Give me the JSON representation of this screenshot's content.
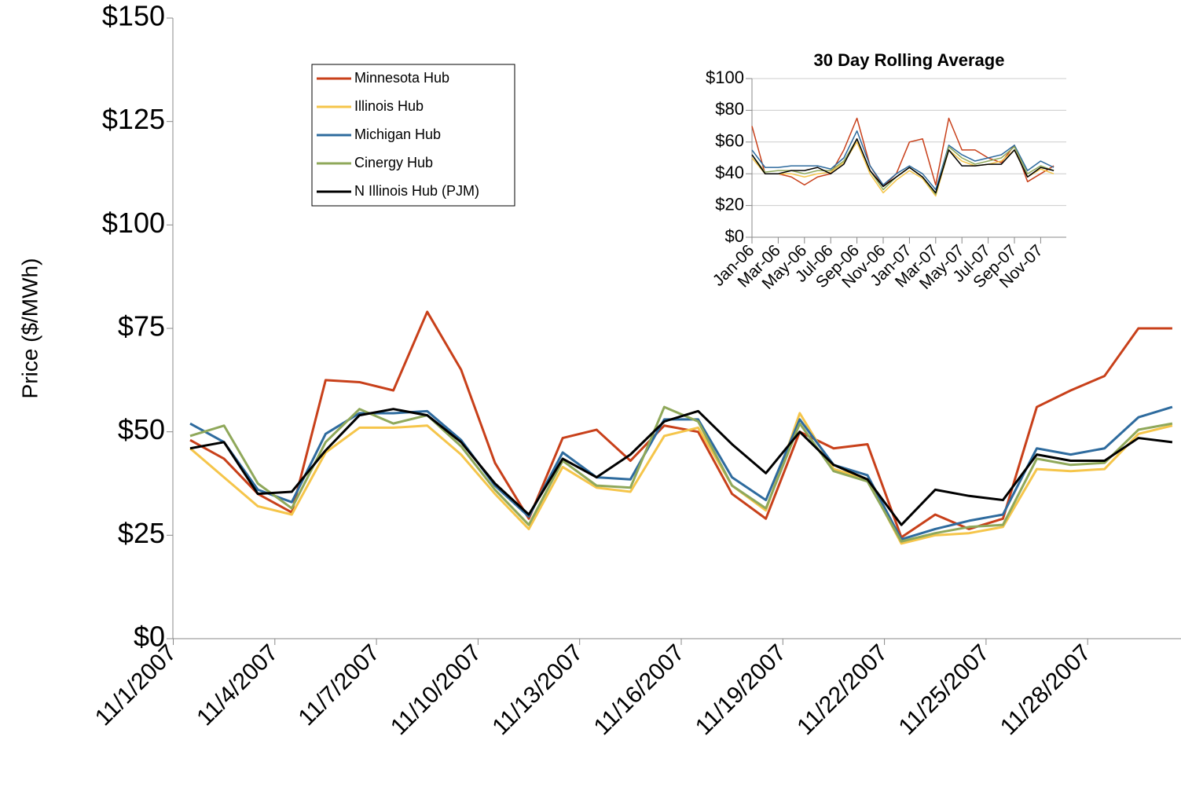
{
  "chart_data": [
    {
      "type": "line",
      "y_label": "Price ($/MWh)",
      "categories": [
        "11/1/2007",
        null,
        null,
        "11/4/2007",
        null,
        null,
        "11/7/2007",
        null,
        null,
        "11/10/2007",
        null,
        null,
        "11/13/2007",
        null,
        null,
        "11/16/2007",
        null,
        null,
        "11/19/2007",
        null,
        null,
        "11/22/2007",
        null,
        null,
        "11/25/2007",
        null,
        null,
        "11/28/2007",
        null,
        null
      ],
      "ylim": [
        0,
        150
      ],
      "yticks": [
        {
          "value": 0,
          "label": "$0"
        },
        {
          "value": 25,
          "label": "$25"
        },
        {
          "value": 50,
          "label": "$50"
        },
        {
          "value": 75,
          "label": "$75"
        },
        {
          "value": 100,
          "label": "$100"
        },
        {
          "value": 125,
          "label": "$125"
        },
        {
          "value": 150,
          "label": "$150"
        }
      ],
      "legend": "top-left",
      "series": [
        {
          "name": "Minnesota Hub",
          "color": "#c8401a",
          "values": [
            48,
            43.5,
            35,
            30.5,
            62.5,
            62,
            60,
            79,
            65,
            42.5,
            29,
            48.5,
            50.5,
            43,
            51.5,
            50,
            35,
            29,
            50,
            46,
            47,
            24.5,
            30,
            26.5,
            29,
            56,
            60,
            63.5,
            75,
            75
          ]
        },
        {
          "name": "Illinois Hub",
          "color": "#f5c54a",
          "values": [
            46,
            39,
            32,
            30,
            45,
            51,
            51,
            51.5,
            44.5,
            35,
            26.5,
            41.5,
            36.5,
            35.5,
            49,
            51,
            37,
            31,
            54.5,
            41,
            38.5,
            23,
            25,
            25.5,
            27,
            41,
            40.5,
            41,
            49.5,
            51.5
          ]
        },
        {
          "name": "Michigan Hub",
          "color": "#2e6b9e",
          "values": [
            52,
            47.5,
            36,
            33,
            49.5,
            54.5,
            54.5,
            55,
            48,
            37,
            29.5,
            45,
            39,
            38.5,
            53,
            53,
            39,
            33.5,
            53,
            42,
            39.5,
            24,
            26.5,
            28.5,
            30,
            46,
            44.5,
            46,
            53.5,
            56
          ]
        },
        {
          "name": "Cinergy Hub",
          "color": "#8fa85a",
          "values": [
            49,
            51.5,
            37.5,
            31.5,
            47.5,
            55.5,
            52,
            54,
            46.5,
            36,
            27.5,
            43,
            37,
            36.5,
            56,
            52.5,
            37,
            31.5,
            52,
            40.5,
            38,
            23.5,
            25.5,
            27,
            27.5,
            43.5,
            42,
            42.5,
            50.5,
            52
          ]
        },
        {
          "name": "N Illinois Hub (PJM)",
          "color": "#000000",
          "values": [
            46,
            47.5,
            35,
            35.5,
            45.5,
            54,
            55.5,
            54,
            47.5,
            37.5,
            30,
            43.5,
            39,
            44.5,
            52.5,
            55,
            47,
            40,
            50,
            42,
            38.5,
            27.5,
            36,
            34.5,
            33.5,
            44.5,
            43,
            43,
            48.5,
            47.5
          ]
        }
      ]
    },
    {
      "type": "line",
      "title": "30 Day Rolling Average",
      "categories": [
        "Jan-06",
        null,
        "Mar-06",
        null,
        "May-06",
        null,
        "Jul-06",
        null,
        "Sep-06",
        null,
        "Nov-06",
        null,
        "Jan-07",
        null,
        "Mar-07",
        null,
        "May-07",
        null,
        "Jul-07",
        null,
        "Sep-07",
        null,
        "Nov-07",
        null
      ],
      "ylim": [
        0,
        100
      ],
      "yticks": [
        {
          "value": 0,
          "label": "$0"
        },
        {
          "value": 20,
          "label": "$20"
        },
        {
          "value": 40,
          "label": "$40"
        },
        {
          "value": 60,
          "label": "$60"
        },
        {
          "value": 80,
          "label": "$80"
        },
        {
          "value": 100,
          "label": "$100"
        }
      ],
      "series": [
        {
          "color": "#c8401a",
          "values": [
            70,
            40,
            40,
            38,
            33,
            38,
            40,
            55,
            75,
            45,
            32,
            40,
            60,
            62,
            33,
            75,
            55,
            55,
            50,
            47,
            58,
            35,
            40,
            45
          ]
        },
        {
          "color": "#2e6b9e",
          "values": [
            55,
            44,
            44,
            45,
            45,
            45,
            43,
            50,
            67,
            45,
            33,
            40,
            45,
            40,
            30,
            58,
            52,
            48,
            50,
            52,
            58,
            42,
            48,
            44
          ]
        },
        {
          "color": "#f5c54a",
          "values": [
            50,
            40,
            40,
            40,
            38,
            40,
            41,
            47,
            60,
            40,
            28,
            36,
            42,
            37,
            26,
            55,
            48,
            45,
            46,
            48,
            55,
            38,
            43,
            40
          ]
        },
        {
          "color": "#8fa85a",
          "values": [
            52,
            41,
            42,
            42,
            40,
            42,
            42,
            48,
            62,
            42,
            30,
            38,
            44,
            38,
            27,
            57,
            50,
            46,
            48,
            50,
            57,
            40,
            45,
            42
          ]
        },
        {
          "color": "#000000",
          "values": [
            52,
            40,
            40,
            42,
            42,
            44,
            40,
            46,
            62,
            42,
            32,
            38,
            44,
            38,
            28,
            55,
            45,
            45,
            46,
            46,
            55,
            38,
            44,
            42
          ]
        }
      ]
    }
  ]
}
